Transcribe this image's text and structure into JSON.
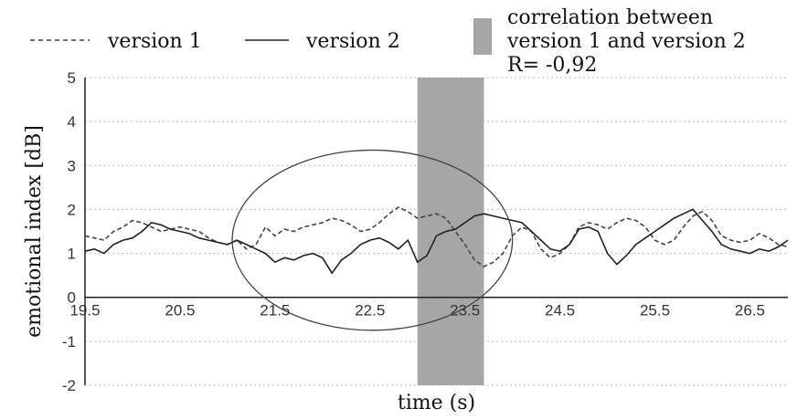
{
  "chart_data": {
    "type": "line",
    "title": "",
    "xlabel": "time (s)",
    "ylabel": "emotional index [dB]",
    "xlim": [
      19.5,
      26.9
    ],
    "ylim": [
      -2,
      5
    ],
    "x_ticks": [
      "19.5",
      "20.5",
      "21.5",
      "22.5",
      "23.5",
      "24.5",
      "25.5",
      "26.5"
    ],
    "y_ticks": [
      "-2",
      "-1",
      "0",
      "1",
      "2",
      "3",
      "4",
      "5"
    ],
    "grid": "horizontal dotted",
    "legend": {
      "position": "top",
      "entries": [
        {
          "label": "version 1",
          "style": "dashed"
        },
        {
          "label": "version 2",
          "style": "solid"
        }
      ]
    },
    "annotation": {
      "line1": "correlation between",
      "line2": "version 1 and version 2",
      "line3": "R= -0,92",
      "x_range": [
        23.0,
        23.7
      ],
      "color": "#a6a6a6"
    },
    "series": [
      {
        "name": "version 1",
        "style": "dashed",
        "x": [
          19.5,
          19.6,
          19.7,
          19.8,
          19.9,
          20.0,
          20.1,
          20.2,
          20.3,
          20.4,
          20.5,
          20.6,
          20.7,
          20.8,
          20.9,
          21.0,
          21.1,
          21.2,
          21.3,
          21.4,
          21.5,
          21.6,
          21.7,
          21.8,
          21.9,
          22.0,
          22.1,
          22.2,
          22.3,
          22.4,
          22.5,
          22.6,
          22.7,
          22.8,
          22.9,
          23.0,
          23.1,
          23.2,
          23.3,
          23.4,
          23.5,
          23.6,
          23.7,
          23.8,
          23.9,
          24.0,
          24.1,
          24.2,
          24.3,
          24.4,
          24.5,
          24.6,
          24.7,
          24.8,
          24.9,
          25.0,
          25.1,
          25.2,
          25.3,
          25.4,
          25.5,
          25.6,
          25.7,
          25.8,
          25.9,
          26.0,
          26.1,
          26.2,
          26.3,
          26.4,
          26.5,
          26.6,
          26.7,
          26.8,
          26.9
        ],
        "y": [
          1.4,
          1.35,
          1.3,
          1.5,
          1.6,
          1.75,
          1.7,
          1.6,
          1.5,
          1.55,
          1.6,
          1.55,
          1.5,
          1.35,
          1.25,
          1.2,
          1.3,
          1.1,
          1.2,
          1.6,
          1.4,
          1.55,
          1.5,
          1.6,
          1.65,
          1.7,
          1.8,
          1.75,
          1.65,
          1.5,
          1.55,
          1.7,
          1.9,
          2.05,
          1.95,
          1.8,
          1.85,
          1.9,
          1.8,
          1.5,
          1.2,
          0.85,
          0.7,
          0.8,
          1.0,
          1.4,
          1.6,
          1.5,
          1.1,
          0.9,
          1.0,
          1.2,
          1.6,
          1.7,
          1.65,
          1.55,
          1.7,
          1.8,
          1.75,
          1.6,
          1.3,
          1.2,
          1.3,
          1.6,
          1.85,
          1.95,
          1.75,
          1.4,
          1.3,
          1.25,
          1.3,
          1.45,
          1.35,
          1.2,
          1.15
        ]
      },
      {
        "name": "version 2",
        "style": "solid",
        "x": [
          19.5,
          19.6,
          19.7,
          19.8,
          19.9,
          20.0,
          20.1,
          20.2,
          20.3,
          20.4,
          20.5,
          20.6,
          20.7,
          20.8,
          20.9,
          21.0,
          21.1,
          21.2,
          21.3,
          21.4,
          21.5,
          21.6,
          21.7,
          21.8,
          21.9,
          22.0,
          22.1,
          22.2,
          22.3,
          22.4,
          22.5,
          22.6,
          22.7,
          22.8,
          22.9,
          23.0,
          23.1,
          23.2,
          23.3,
          23.4,
          23.5,
          23.6,
          23.7,
          23.8,
          23.9,
          24.0,
          24.1,
          24.2,
          24.3,
          24.4,
          24.5,
          24.6,
          24.7,
          24.8,
          24.9,
          25.0,
          25.1,
          25.2,
          25.3,
          25.4,
          25.5,
          25.6,
          25.7,
          25.8,
          25.9,
          26.0,
          26.1,
          26.2,
          26.3,
          26.4,
          26.5,
          26.6,
          26.7,
          26.8,
          26.9
        ],
        "y": [
          1.05,
          1.1,
          1.0,
          1.2,
          1.3,
          1.35,
          1.5,
          1.7,
          1.65,
          1.55,
          1.5,
          1.45,
          1.35,
          1.3,
          1.25,
          1.2,
          1.3,
          1.2,
          1.1,
          1.0,
          0.8,
          0.9,
          0.85,
          0.95,
          1.0,
          0.9,
          0.55,
          0.85,
          1.0,
          1.2,
          1.3,
          1.35,
          1.25,
          1.1,
          1.3,
          0.8,
          0.95,
          1.4,
          1.5,
          1.55,
          1.7,
          1.85,
          1.9,
          1.85,
          1.8,
          1.75,
          1.7,
          1.5,
          1.3,
          1.1,
          1.05,
          1.2,
          1.55,
          1.6,
          1.5,
          1.0,
          0.75,
          0.95,
          1.2,
          1.35,
          1.5,
          1.65,
          1.8,
          1.9,
          2.0,
          1.75,
          1.5,
          1.2,
          1.1,
          1.05,
          1.0,
          1.1,
          1.05,
          1.15,
          1.3
        ]
      }
    ]
  }
}
